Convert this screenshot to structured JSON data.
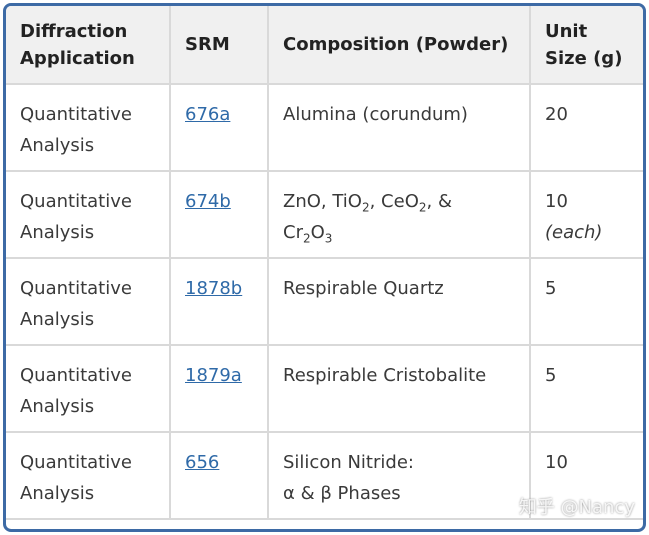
{
  "table": {
    "headers": [
      "Diffraction Application",
      "SRM",
      "Composition (Powder)",
      "Unit Size (g)"
    ],
    "rows": [
      {
        "application": "Quantitative Analysis",
        "srm": "676a",
        "composition": [
          [
            {
              "text": "Alumina (corundum)"
            }
          ]
        ],
        "unit_size": "20"
      },
      {
        "application": "Quantitative Analysis",
        "srm": "674b",
        "composition": [
          [
            {
              "text": "ZnO, TiO"
            },
            {
              "sub": "2"
            },
            {
              "text": ", CeO"
            },
            {
              "sub": "2"
            },
            {
              "text": ", &"
            }
          ],
          [
            {
              "text": "Cr"
            },
            {
              "sub": "2"
            },
            {
              "text": "O"
            },
            {
              "sub": "3"
            }
          ]
        ],
        "unit_size": "10",
        "unit_note": "(each)"
      },
      {
        "application": "Quantitative Analysis",
        "srm": "1878b",
        "composition": [
          [
            {
              "text": "Respirable Quartz"
            }
          ]
        ],
        "unit_size": "5"
      },
      {
        "application": "Quantitative Analysis",
        "srm": "1879a",
        "composition": [
          [
            {
              "text": "Respirable Cristobalite"
            }
          ]
        ],
        "unit_size": "5"
      },
      {
        "application": "Quantitative Analysis",
        "srm": "656",
        "composition": [
          [
            {
              "text": "Silicon Nitride:"
            }
          ],
          [
            {
              "text": "α & β Phases"
            }
          ]
        ],
        "unit_size": "10"
      }
    ]
  },
  "watermark": "知乎 @Nancy"
}
